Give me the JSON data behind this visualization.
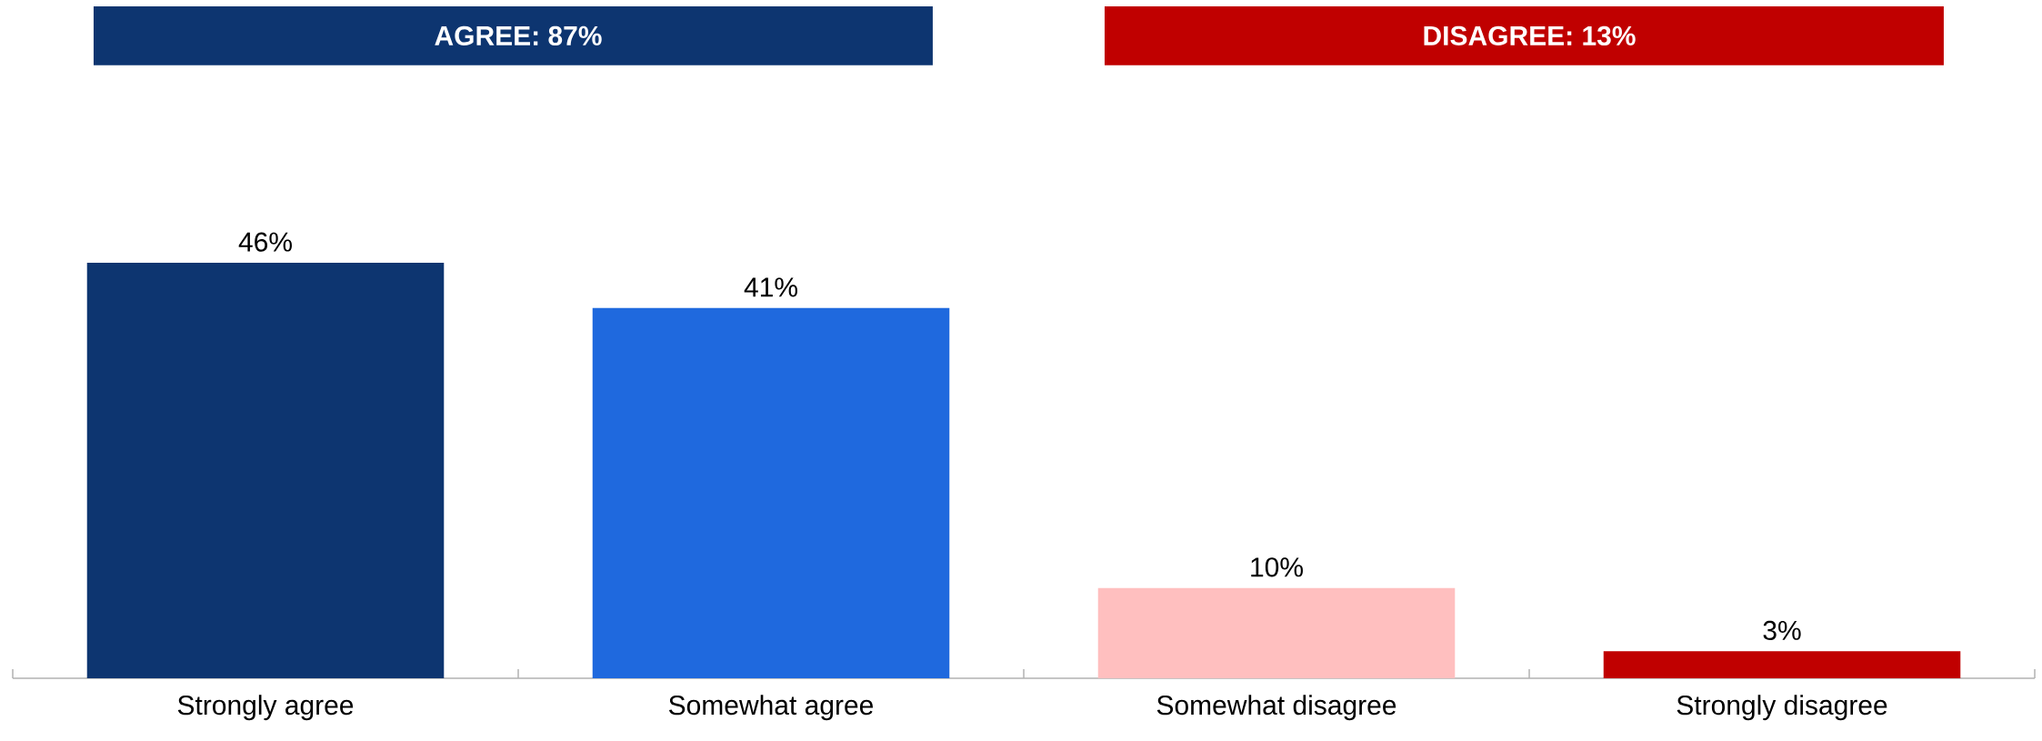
{
  "chart_data": {
    "type": "bar",
    "categories": [
      "Strongly agree",
      "Somewhat agree",
      "Somewhat disagree",
      "Strongly disagree"
    ],
    "values": [
      46,
      41,
      10,
      3
    ],
    "colors": [
      "#0d3570",
      "#1f69de",
      "#ffbfbf",
      "#c00000"
    ],
    "value_labels": [
      "46%",
      "41%",
      "10%",
      "3%"
    ],
    "annotations": [
      "AGREE: 87%",
      "DISAGREE: 13%"
    ]
  }
}
